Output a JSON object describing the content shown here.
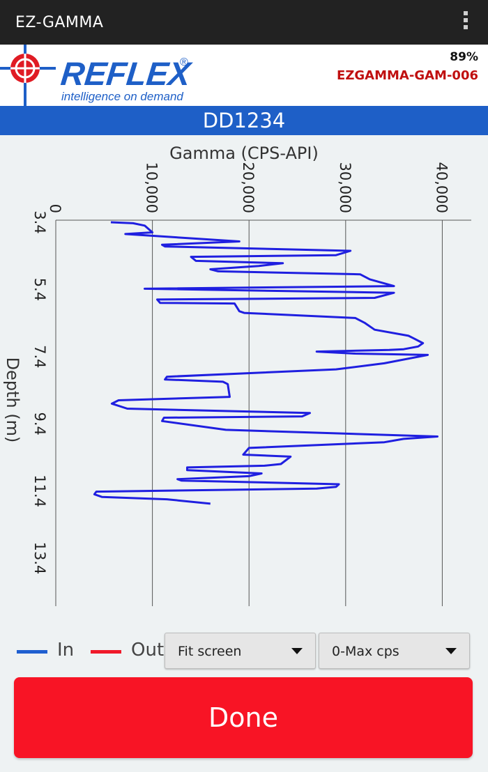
{
  "app": {
    "title": "EZ-GAMMA",
    "menu_icon": "overflow-menu-icon"
  },
  "header": {
    "logo_text": "REFLEX",
    "logo_tagline": "intelligence on demand",
    "registered": "®",
    "battery": "89%",
    "device_id": "EZGAMMA-GAM-006",
    "colors": {
      "brand_blue": "#1e5fc7",
      "brand_red": "#e01b24",
      "device_text": "#c01010"
    }
  },
  "hole": {
    "id": "DD1234"
  },
  "chart_data": {
    "type": "line",
    "orientation": "vertical-depth",
    "title": "Gamma (CPS-API)",
    "xlabel": "Gamma (CPS-API)",
    "ylabel": "Depth (m)",
    "x_ticks": [
      "0",
      "10,000",
      "20,000",
      "30,000",
      "40,000"
    ],
    "x_tick_values": [
      0,
      10000,
      20000,
      30000,
      40000
    ],
    "y_ticks": [
      "3.4",
      "5.4",
      "7.4",
      "9.4",
      "11.4",
      "13.4"
    ],
    "y_tick_values": [
      3.4,
      5.4,
      7.4,
      9.4,
      11.4,
      13.4
    ],
    "xlim": [
      0,
      43000
    ],
    "ylim": [
      3.4,
      13.4
    ],
    "grid": "vertical",
    "series": [
      {
        "name": "In",
        "color": "#1f1fe0",
        "points": [
          [
            5700,
            3.4
          ],
          [
            8000,
            3.43
          ],
          [
            9200,
            3.5
          ],
          [
            10000,
            3.7
          ],
          [
            7200,
            3.75
          ],
          [
            19000,
            3.97
          ],
          [
            11000,
            4.07
          ],
          [
            11300,
            4.12
          ],
          [
            30500,
            4.25
          ],
          [
            29000,
            4.38
          ],
          [
            14000,
            4.43
          ],
          [
            14500,
            4.55
          ],
          [
            23500,
            4.62
          ],
          [
            21000,
            4.7
          ],
          [
            16000,
            4.8
          ],
          [
            16800,
            4.86
          ],
          [
            31500,
            4.95
          ],
          [
            32500,
            5.1
          ],
          [
            35000,
            5.3
          ],
          [
            9200,
            5.38
          ],
          [
            35000,
            5.5
          ],
          [
            33000,
            5.65
          ],
          [
            10500,
            5.7
          ],
          [
            10800,
            5.8
          ],
          [
            18500,
            5.82
          ],
          [
            19000,
            6.05
          ],
          [
            19500,
            6.1
          ],
          [
            31000,
            6.25
          ],
          [
            32000,
            6.4
          ],
          [
            33000,
            6.6
          ],
          [
            36500,
            6.78
          ],
          [
            37000,
            6.85
          ],
          [
            38000,
            7.0
          ],
          [
            37500,
            7.1
          ],
          [
            36000,
            7.18
          ],
          [
            34500,
            7.2
          ],
          [
            27000,
            7.25
          ],
          [
            31000,
            7.31
          ],
          [
            38500,
            7.35
          ],
          [
            34000,
            7.6
          ],
          [
            29000,
            7.78
          ],
          [
            11500,
            8.0
          ],
          [
            11300,
            8.08
          ],
          [
            17300,
            8.15
          ],
          [
            17800,
            8.22
          ],
          [
            18000,
            8.6
          ],
          [
            6500,
            8.7
          ],
          [
            5800,
            8.8
          ],
          [
            7400,
            8.95
          ],
          [
            26300,
            9.08
          ],
          [
            25500,
            9.18
          ],
          [
            11200,
            9.22
          ],
          [
            11000,
            9.32
          ],
          [
            17600,
            9.58
          ],
          [
            39500,
            9.78
          ],
          [
            36000,
            9.85
          ],
          [
            34000,
            9.95
          ],
          [
            20000,
            10.12
          ],
          [
            19400,
            10.32
          ],
          [
            24300,
            10.38
          ],
          [
            23300,
            10.6
          ],
          [
            21600,
            10.65
          ],
          [
            13600,
            10.7
          ],
          [
            13600,
            10.78
          ],
          [
            21300,
            10.88
          ],
          [
            20000,
            10.96
          ],
          [
            12600,
            11.05
          ],
          [
            13000,
            11.09
          ],
          [
            29300,
            11.2
          ],
          [
            29000,
            11.28
          ],
          [
            27000,
            11.33
          ],
          [
            4200,
            11.42
          ],
          [
            4000,
            11.5
          ],
          [
            4800,
            11.58
          ],
          [
            11500,
            11.65
          ],
          [
            16000,
            11.78
          ]
        ]
      },
      {
        "name": "Out",
        "color": "#f01a2a",
        "points": []
      }
    ]
  },
  "controls": {
    "legend_in": "In",
    "legend_out": "Out",
    "scale_dropdown": "Fit screen",
    "range_dropdown": "0-Max cps",
    "done_label": "Done"
  }
}
